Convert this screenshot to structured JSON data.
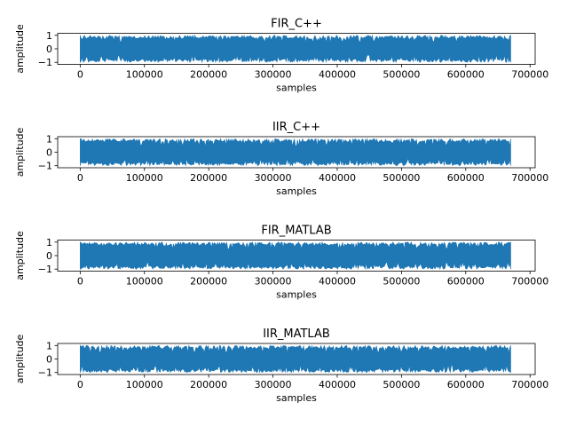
{
  "figure": {
    "background": "#ffffff",
    "line_color": "#1f77b4"
  },
  "chart_data": [
    {
      "type": "line",
      "title": "FIR_C++",
      "xlabel": "samples",
      "ylabel": "amplitude",
      "xlim": [
        -35000,
        708000
      ],
      "ylim": [
        -1.15,
        1.15
      ],
      "xticks": [
        0,
        100000,
        200000,
        300000,
        400000,
        500000,
        600000,
        700000
      ],
      "yticks": [
        1,
        0,
        -1
      ],
      "n_samples": 670000,
      "amplitude_range": [
        -1,
        1
      ],
      "grid": false,
      "series": [
        {
          "x_range": [
            0,
            670000
          ],
          "y_range": [
            -1,
            1
          ]
        }
      ]
    },
    {
      "type": "line",
      "title": "IIR_C++",
      "xlabel": "samples",
      "ylabel": "amplitude",
      "xlim": [
        -35000,
        708000
      ],
      "ylim": [
        -1.15,
        1.15
      ],
      "xticks": [
        0,
        100000,
        200000,
        300000,
        400000,
        500000,
        600000,
        700000
      ],
      "yticks": [
        1,
        0,
        -1
      ],
      "n_samples": 670000,
      "amplitude_range": [
        -1,
        1
      ],
      "grid": false,
      "series": [
        {
          "x_range": [
            0,
            670000
          ],
          "y_range": [
            -1,
            1
          ]
        }
      ]
    },
    {
      "type": "line",
      "title": "FIR_MATLAB",
      "xlabel": "samples",
      "ylabel": "amplitude",
      "xlim": [
        -35000,
        708000
      ],
      "ylim": [
        -1.15,
        1.15
      ],
      "xticks": [
        0,
        100000,
        200000,
        300000,
        400000,
        500000,
        600000,
        700000
      ],
      "yticks": [
        1,
        0,
        -1
      ],
      "n_samples": 670000,
      "amplitude_range": [
        -1,
        1
      ],
      "grid": false,
      "series": [
        {
          "x_range": [
            0,
            670000
          ],
          "y_range": [
            -1,
            1
          ]
        }
      ]
    },
    {
      "type": "line",
      "title": "IIR_MATLAB",
      "xlabel": "samples",
      "ylabel": "amplitude",
      "xlim": [
        -35000,
        708000
      ],
      "ylim": [
        -1.15,
        1.15
      ],
      "xticks": [
        0,
        100000,
        200000,
        300000,
        400000,
        500000,
        600000,
        700000
      ],
      "yticks": [
        1,
        0,
        -1
      ],
      "n_samples": 670000,
      "amplitude_range": [
        -1,
        1
      ],
      "grid": false,
      "series": [
        {
          "x_range": [
            0,
            670000
          ],
          "y_range": [
            -1,
            1
          ]
        }
      ]
    }
  ]
}
